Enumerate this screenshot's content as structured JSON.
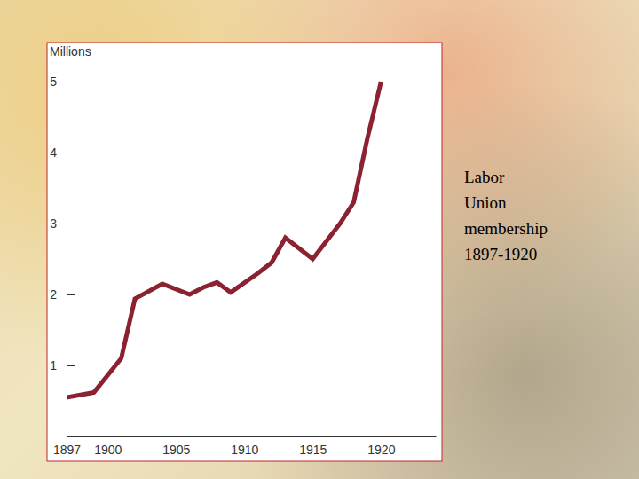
{
  "chart_data": {
    "type": "line",
    "y_label": "Millions",
    "caption": "Labor Union membership 1897-1920",
    "x": [
      1897,
      1899,
      1901,
      1902,
      1904,
      1906,
      1907,
      1908,
      1909,
      1911,
      1912,
      1913,
      1915,
      1917,
      1918,
      1919,
      1920
    ],
    "values": [
      0.55,
      0.62,
      1.1,
      1.94,
      2.15,
      2.0,
      2.1,
      2.17,
      2.03,
      2.3,
      2.45,
      2.8,
      2.5,
      3.0,
      3.3,
      4.2,
      5.0
    ],
    "color": "#8b2232",
    "xlim": [
      1897,
      1924
    ],
    "xticks": [
      1897,
      1900,
      1905,
      1910,
      1915,
      1920
    ],
    "ylim": [
      0,
      5.3
    ],
    "yticks": [
      1,
      2,
      3,
      4,
      5
    ],
    "grid": false
  }
}
